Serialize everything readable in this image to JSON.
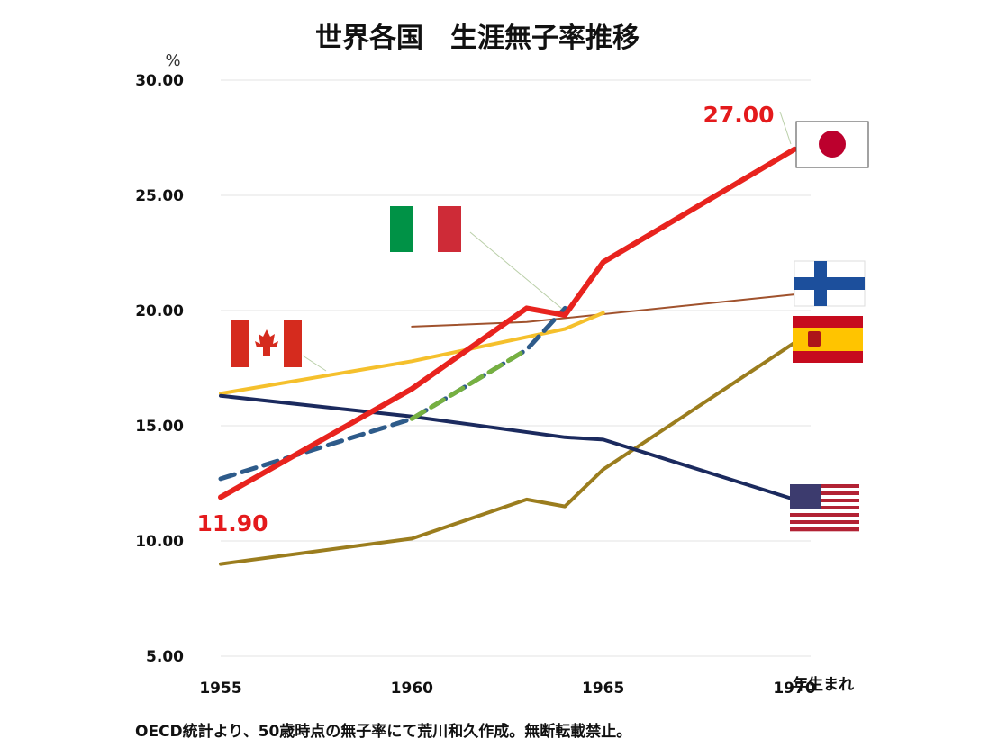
{
  "chart_data": {
    "type": "line",
    "title": "世界各国　生涯無子率推移",
    "ylabel": "%",
    "xlabel": "年生まれ",
    "ylim": [
      5,
      30
    ],
    "xlim": [
      1955,
      1970
    ],
    "yticks": [
      "5.00",
      "10.00",
      "15.00",
      "20.00",
      "25.00",
      "30.00"
    ],
    "xticks": [
      "1955",
      "1960",
      "1965",
      "1970"
    ],
    "grid": "horizontal",
    "source_note": "OECD統計より、50歳時点の無子率にて荒川和久作成。無断転載禁止。",
    "annotations": [
      {
        "text": "11.90",
        "x": 1955,
        "y": 11.9
      },
      {
        "text": "27.00",
        "x": 1970,
        "y": 27.0
      }
    ],
    "series": [
      {
        "color": "#e8231e",
        "icon": "japan-flag-icon",
        "x": [
          1955,
          1960,
          1963,
          1964,
          1965,
          1970
        ],
        "y": [
          11.9,
          16.6,
          20.1,
          19.8,
          22.1,
          27.0
        ]
      },
      {
        "color": "#2e5b8a",
        "icon": "italy-flag-icon",
        "dash": true,
        "x": [
          1955,
          1960,
          1963,
          1964
        ],
        "y": [
          12.7,
          15.3,
          18.3,
          20.1
        ]
      },
      {
        "color": "#76b041",
        "dash": true,
        "x": [
          1960,
          1963
        ],
        "y": [
          15.3,
          18.3
        ]
      },
      {
        "color": "#f5c02c",
        "icon": "canada-flag-icon",
        "x": [
          1955,
          1960,
          1964,
          1965
        ],
        "y": [
          16.4,
          17.8,
          19.2,
          19.9
        ]
      },
      {
        "color": "#1b2a5e",
        "icon": "usa-flag-icon",
        "x": [
          1955,
          1960,
          1964,
          1965,
          1970
        ],
        "y": [
          16.3,
          15.4,
          14.5,
          14.4,
          11.8
        ]
      },
      {
        "color": "#a0522d",
        "icon": "finland-flag-icon",
        "x": [
          1960,
          1963,
          1970
        ],
        "y": [
          19.3,
          19.5,
          20.7
        ]
      },
      {
        "color": "#9b7d1e",
        "icon": "spain-flag-icon",
        "x": [
          1955,
          1960,
          1963,
          1964,
          1965,
          1970
        ],
        "y": [
          9.0,
          10.1,
          11.8,
          11.5,
          13.1,
          18.6
        ]
      }
    ]
  }
}
